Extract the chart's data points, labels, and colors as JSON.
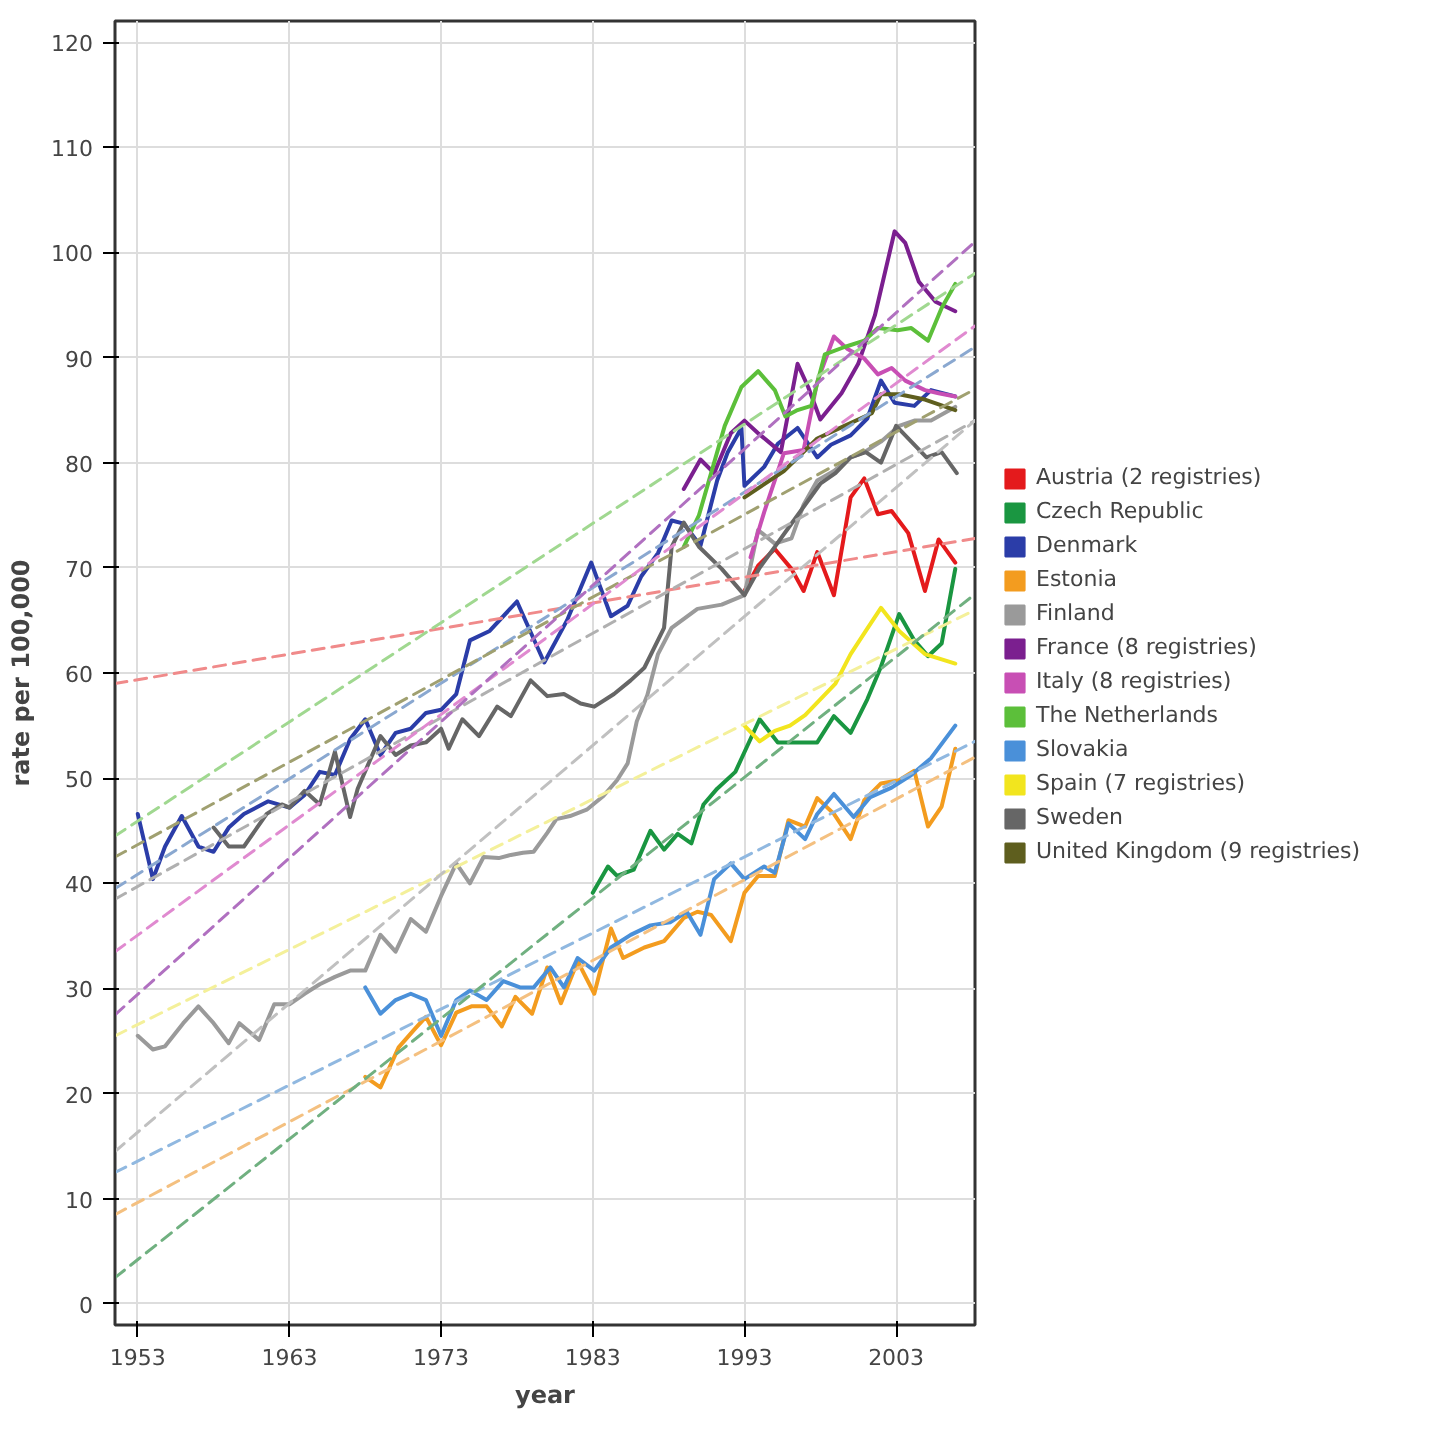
{
  "chart_data": {
    "type": "line",
    "xlabel": "year",
    "ylabel": "rate per 100,000",
    "xlim": [
      1951.5,
      2008.2
    ],
    "ylim": [
      -2,
      122
    ],
    "xticks": [
      1953,
      1963,
      1973,
      1983,
      1993,
      2003
    ],
    "yticks": [
      0,
      10,
      20,
      30,
      40,
      50,
      60,
      70,
      80,
      90,
      100,
      110,
      120
    ],
    "grid": true,
    "legend": "right",
    "marker": "none",
    "series": [
      {
        "name": "Austria (2 registries)",
        "color": "#e41a1c",
        "x": [
          1993,
          1993.9,
          1995,
          1996.1,
          1996.9,
          1997.8,
          1998.9,
          2000,
          2000.9,
          2001.8,
          2002.7,
          2003.8,
          2004.9,
          2005.8,
          2006.9
        ],
        "values": [
          67.8,
          70.2,
          71.8,
          69.9,
          67.8,
          71.5,
          67.4,
          76.7,
          78.5,
          75.1,
          75.4,
          73.3,
          67.8,
          72.7,
          70.5
        ]
      },
      {
        "name": "Czech Republic",
        "color": "#1a9641",
        "x": [
          1983,
          1984,
          1984.6,
          1985.7,
          1986.8,
          1987.7,
          1988.6,
          1989.5,
          1990.3,
          1991.2,
          1992.4,
          1994,
          1995.2,
          1996.5,
          1997.8,
          1998.9,
          2000,
          2001.1,
          2002,
          2003.2,
          2004.2,
          2005.1,
          2006,
          2006.9
        ],
        "values": [
          39.1,
          41.6,
          40.7,
          41.3,
          45,
          43.2,
          44.7,
          43.8,
          47.5,
          49,
          50.6,
          55.6,
          53.4,
          53.4,
          53.4,
          55.9,
          54.3,
          57.5,
          60.6,
          65.6,
          63.1,
          61.6,
          62.8,
          69.9
        ]
      },
      {
        "name": "Denmark",
        "color": "#2b3da8",
        "x": [
          1953,
          1954,
          1954.8,
          1955.9,
          1957,
          1958,
          1959,
          1960,
          1961.6,
          1963,
          1964,
          1965,
          1966,
          1967,
          1968,
          1969,
          1970,
          1971,
          1972,
          1973,
          1974,
          1974.9,
          1976.2,
          1978,
          1979.8,
          1981.3,
          1982.9,
          1984.2,
          1985.3,
          1986.2,
          1987.3,
          1988.2,
          1989,
          1990.1,
          1991.2,
          1991.9,
          1992.8,
          1993,
          1994.3,
          1995.2,
          1996.5,
          1997.8,
          1998.7,
          2000,
          2001.1,
          2002,
          2002.9,
          2004.2,
          2005.3,
          2006.9
        ],
        "values": [
          46.6,
          40.4,
          43.5,
          46.4,
          43.5,
          43,
          45.3,
          46.6,
          47.8,
          47.2,
          48.4,
          50.6,
          50.3,
          53.7,
          55.6,
          52.2,
          54.3,
          54.7,
          56.2,
          56.5,
          58,
          63.1,
          64,
          66.8,
          61,
          65,
          70.5,
          65.4,
          66.4,
          69.2,
          71.4,
          74.5,
          74.2,
          72.1,
          78.3,
          81,
          83.3,
          77.8,
          79.6,
          81.8,
          83.3,
          80.5,
          81.7,
          82.6,
          84.2,
          87.8,
          85.7,
          85.4,
          86.9,
          86.3
        ]
      },
      {
        "name": "Estonia",
        "color": "#f39c1f",
        "x": [
          1968,
          1969,
          1970.2,
          1971.3,
          1972,
          1973,
          1974,
          1975,
          1976,
          1977,
          1977.9,
          1979,
          1980,
          1980.9,
          1982,
          1983.1,
          1984.2,
          1985,
          1986.4,
          1987.7,
          1989,
          1989.9,
          1990.8,
          1992.1,
          1993,
          1993.9,
          1995,
          1995.9,
          1997,
          1997.8,
          1998.9,
          2000,
          2000.9,
          2002,
          2003.2,
          2004.2,
          2005.1,
          2006,
          2006.9
        ],
        "values": [
          21.6,
          20.6,
          24.4,
          26.2,
          27.3,
          24.6,
          27.7,
          28.3,
          28.3,
          26.4,
          29.2,
          27.6,
          32,
          28.6,
          32.6,
          29.5,
          35.7,
          32.9,
          33.9,
          34.5,
          36.7,
          37.3,
          37,
          34.5,
          39.1,
          40.7,
          40.7,
          46,
          45.4,
          48.1,
          46.6,
          44.2,
          47.9,
          49.5,
          49.8,
          50.7,
          45.4,
          47.3,
          52.8
        ]
      },
      {
        "name": "Finland",
        "color": "#9a9a9a",
        "x": [
          1953,
          1954,
          1954.8,
          1956,
          1957,
          1958,
          1959,
          1959.7,
          1961,
          1962,
          1963,
          1964,
          1965,
          1966,
          1967,
          1968,
          1969,
          1970,
          1971,
          1972,
          1973,
          1974,
          1974.9,
          1975.8,
          1976.8,
          1977.6,
          1978.4,
          1979.1,
          1980,
          1980.6,
          1981.5,
          1982.6,
          1983.7,
          1984.6,
          1985.3,
          1985.9,
          1986.6,
          1987.3,
          1988.2,
          1989.9,
          1991.5,
          1993,
          1993.9,
          1995,
          1996.1,
          1996.9,
          1997.8,
          1998.9,
          2000,
          2000.9,
          2002,
          2003.2,
          2004.2,
          2005.3,
          2006.9
        ],
        "values": [
          25.5,
          24.2,
          24.5,
          26.7,
          28.3,
          26.7,
          24.8,
          26.7,
          25.1,
          28.5,
          28.5,
          29.5,
          30.4,
          31.1,
          31.7,
          31.7,
          35.1,
          33.5,
          36.6,
          35.4,
          38.8,
          41.9,
          40,
          42.5,
          42.4,
          42.7,
          42.9,
          43,
          44.8,
          46.1,
          46.4,
          47,
          48.3,
          49.8,
          51.4,
          55.4,
          57.9,
          61.8,
          64.3,
          66.1,
          66.5,
          67.4,
          73.6,
          72.3,
          72.8,
          76,
          78.3,
          79.2,
          80.5,
          81,
          82,
          83.5,
          84,
          84,
          85.3
        ]
      },
      {
        "name": "France (8 registries)",
        "color": "#7b1f8f",
        "x": [
          1989,
          1990.1,
          1991,
          1992.1,
          1993,
          1993.9,
          1995.4,
          1996.5,
          1997.2,
          1998,
          1999.4,
          2000.5,
          2001.6,
          2002.9,
          2003.6,
          2004.5,
          2005.6,
          2006.9
        ],
        "values": [
          77.5,
          80.3,
          79,
          82.8,
          84,
          82.8,
          81,
          89.4,
          87.2,
          84.1,
          86.6,
          89.4,
          94,
          102,
          100.9,
          97.2,
          95.3,
          94.4
        ]
      },
      {
        "name": "Italy (8 registries)",
        "color": "#c84fb4",
        "x": [
          1993.4,
          1994.3,
          1995.6,
          1996.9,
          1997.8,
          1998.9,
          1999.8,
          2000.9,
          2001.8,
          2002.7,
          2003.6,
          2004.9,
          2005.8,
          2006.9
        ],
        "values": [
          71,
          75.3,
          80.9,
          81.2,
          87.7,
          92,
          90.8,
          89.9,
          88.4,
          89,
          87.8,
          86.9,
          86.6,
          86.3
        ]
      },
      {
        "name": "The Netherlands",
        "color": "#5cbf3a",
        "x": [
          1989,
          1990,
          1991.7,
          1992.8,
          1993.9,
          1995,
          1995.7,
          1996.5,
          1997.4,
          1998.3,
          1999.6,
          2000.9,
          2001.8,
          2003.1,
          2004,
          2005.1,
          2006,
          2006.9
        ],
        "values": [
          72,
          75,
          83.5,
          87.2,
          88.7,
          86.9,
          84.4,
          85,
          85.4,
          90.3,
          91,
          91.6,
          92.8,
          92.6,
          92.8,
          91.6,
          94.7,
          97
        ]
      },
      {
        "name": "Slovakia",
        "color": "#4a90d9",
        "x": [
          1968,
          1969,
          1970,
          1971,
          1972,
          1973,
          1974,
          1974.9,
          1976,
          1977.1,
          1978.2,
          1979.1,
          1980.2,
          1981.1,
          1982,
          1983.1,
          1984.2,
          1985.5,
          1986.8,
          1988.1,
          1989.2,
          1990.1,
          1991,
          1992.1,
          1993,
          1994.3,
          1995,
          1995.9,
          1997,
          1997.8,
          1998.9,
          2000.2,
          2001.3,
          2002.7,
          2004,
          2005.3,
          2006.9
        ],
        "values": [
          30.1,
          27.6,
          28.9,
          29.5,
          28.9,
          25.5,
          28.9,
          29.8,
          28.9,
          30.7,
          30.1,
          30.1,
          32,
          30.1,
          32.9,
          31.7,
          33.9,
          35.1,
          36,
          36.3,
          37.3,
          35.1,
          40.4,
          41.9,
          40.4,
          41.6,
          41,
          45.7,
          44.2,
          46.6,
          48.5,
          46.3,
          48.2,
          49.1,
          50.3,
          51.9,
          55
        ]
      },
      {
        "name": "Spain (7 registries)",
        "color": "#f2e51e",
        "x": [
          1993,
          1994,
          1995,
          1996,
          1997,
          1998,
          1999,
          2000,
          2001,
          2002,
          2003.2,
          2004.9,
          2006.9
        ],
        "values": [
          55,
          53.5,
          54.5,
          55,
          56,
          57.5,
          59,
          61.8,
          64,
          66.2,
          64,
          61.8,
          60.9
        ]
      },
      {
        "name": "Sweden",
        "color": "#666666",
        "x": [
          1958,
          1959,
          1960,
          1961.5,
          1962.5,
          1963,
          1964,
          1965,
          1966,
          1967,
          1967.5,
          1969,
          1970,
          1971,
          1972,
          1973,
          1973.5,
          1974.4,
          1975.5,
          1976.7,
          1977.6,
          1978.9,
          1980,
          1981.1,
          1982.2,
          1983.1,
          1984.4,
          1985.5,
          1986.4,
          1987.7,
          1988.2,
          1989,
          1990,
          1991.5,
          1993,
          1994,
          1995,
          1996,
          1997,
          1998,
          1999,
          2000,
          2001,
          2002,
          2003,
          2004,
          2005,
          2006,
          2007
        ],
        "values": [
          45.3,
          43.5,
          43.5,
          46.6,
          47.5,
          47.2,
          48.8,
          47.5,
          52.5,
          46.3,
          49,
          54,
          52.2,
          53.1,
          53.4,
          54.7,
          52.8,
          55.6,
          54,
          56.8,
          55.9,
          59.3,
          57.8,
          58,
          57.1,
          56.8,
          58,
          59.3,
          60.5,
          64.3,
          72,
          74.3,
          72,
          69.9,
          67.4,
          70,
          72,
          74,
          76,
          78,
          79,
          80.5,
          81,
          80,
          83.5,
          82,
          80.5,
          81,
          79
        ]
      },
      {
        "name": "United Kingdom (9 registries)",
        "color": "#5e5e1e",
        "x": [
          1993,
          1995.6,
          1997.8,
          1999.6,
          2001.4,
          2002,
          2003.2,
          2004.9,
          2006.9
        ],
        "values": [
          76.7,
          79.2,
          82.3,
          83.5,
          84.7,
          86.5,
          86.5,
          86,
          85
        ]
      },
      {
        "color": "#f08a8a",
        "line_style": "dashed",
        "x": [
          1951.5,
          2008.2
        ],
        "values": [
          59,
          72.8
        ]
      },
      {
        "color": "#a0d890",
        "line_style": "dashed",
        "x": [
          1951.5,
          2008.2
        ],
        "values": [
          44.5,
          98
        ]
      },
      {
        "color": "#8aa8d0",
        "line_style": "dashed",
        "x": [
          1951.5,
          2008.2
        ],
        "values": [
          39.5,
          91
        ]
      },
      {
        "color": "#a0a070",
        "line_style": "dashed",
        "x": [
          1951.5,
          2008.2
        ],
        "values": [
          42.5,
          87
        ]
      },
      {
        "color": "#b0b0b0",
        "line_style": "dashed",
        "x": [
          1951.5,
          2008.2
        ],
        "values": [
          38.5,
          84
        ]
      },
      {
        "color": "#e08ad0",
        "line_style": "dashed",
        "x": [
          1951.5,
          2008.2
        ],
        "values": [
          33.5,
          93
        ]
      },
      {
        "color": "#b070c0",
        "line_style": "dashed",
        "x": [
          1951.5,
          2008.2
        ],
        "values": [
          27.5,
          101
        ]
      },
      {
        "color": "#f4f09a",
        "line_style": "dashed",
        "x": [
          1951.5,
          2008.2
        ],
        "values": [
          25.5,
          66
        ]
      },
      {
        "color": "#c0c0c0",
        "line_style": "dashed",
        "x": [
          1951.5,
          2008.2
        ],
        "values": [
          14.5,
          84
        ]
      },
      {
        "color": "#90b8e0",
        "line_style": "dashed",
        "x": [
          1951.5,
          2008.2
        ],
        "values": [
          12.5,
          53.5
        ]
      },
      {
        "color": "#f4c080",
        "line_style": "dashed",
        "x": [
          1951.5,
          2008.2
        ],
        "values": [
          8.5,
          52
        ]
      },
      {
        "color": "#70b080",
        "line_style": "dashed",
        "x": [
          1951.5,
          2008.2
        ],
        "values": [
          2.5,
          67.5
        ]
      }
    ]
  }
}
